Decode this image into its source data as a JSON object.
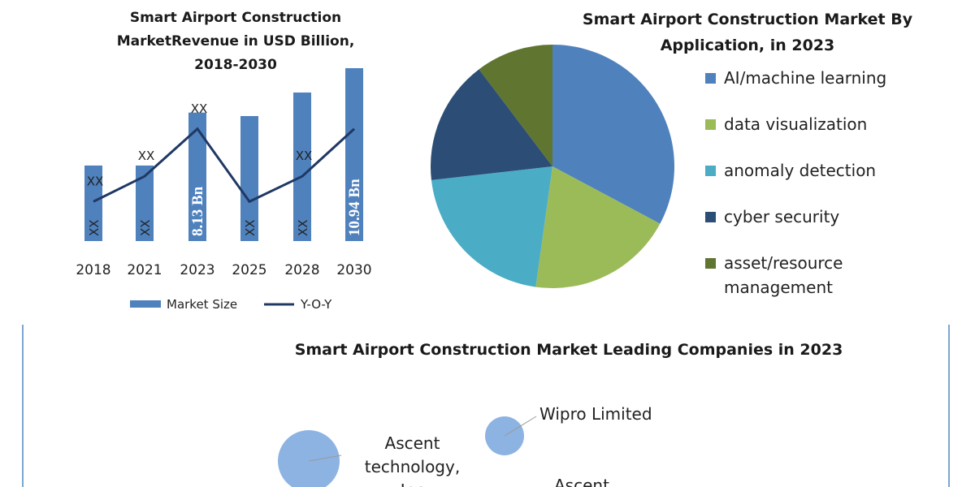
{
  "chart_data": [
    {
      "type": "bar",
      "title": "Smart Airport Construction MarketRevenue in USD Billion, 2018-2030",
      "categories": [
        "2018",
        "2021",
        "2023",
        "2025",
        "2028",
        "2030"
      ],
      "series": [
        {
          "name": "Market Size",
          "type": "bar",
          "color": "#4f81bd",
          "values": [
            4.78,
            4.78,
            8.13,
            7.91,
            9.4,
            10.94
          ],
          "value_labels": [
            "XX",
            "XX",
            "8.13 Bn",
            "XX",
            "XX",
            "10.94 Bn"
          ]
        },
        {
          "name": "Y-O-Y",
          "type": "line",
          "color": "#1f3864",
          "values": [
            2.5,
            4.1,
            7.1,
            2.5,
            4.1,
            7.1
          ],
          "value_labels": [
            "XX",
            "XX",
            "XX",
            null,
            "XX",
            null
          ]
        }
      ]
    },
    {
      "type": "pie",
      "title": "Smart Airport Construction Market By Application, in 2023",
      "categories": [
        "AI/machine learning",
        "data visualization",
        "anomaly detection",
        "cyber security",
        "asset/resource management"
      ],
      "values": [
        32.8,
        19.4,
        21,
        16.5,
        10.3
      ],
      "colors": [
        "#4f81bd",
        "#9bbb59",
        "#4bacc6",
        "#2c4d75",
        "#5f7530"
      ]
    },
    {
      "type": "bubble",
      "title": "Smart Airport Construction Market Leading Companies in 2023",
      "labels": [
        "Ascent technology, Inc",
        "Wipro Limited",
        "Ascent"
      ]
    }
  ]
}
